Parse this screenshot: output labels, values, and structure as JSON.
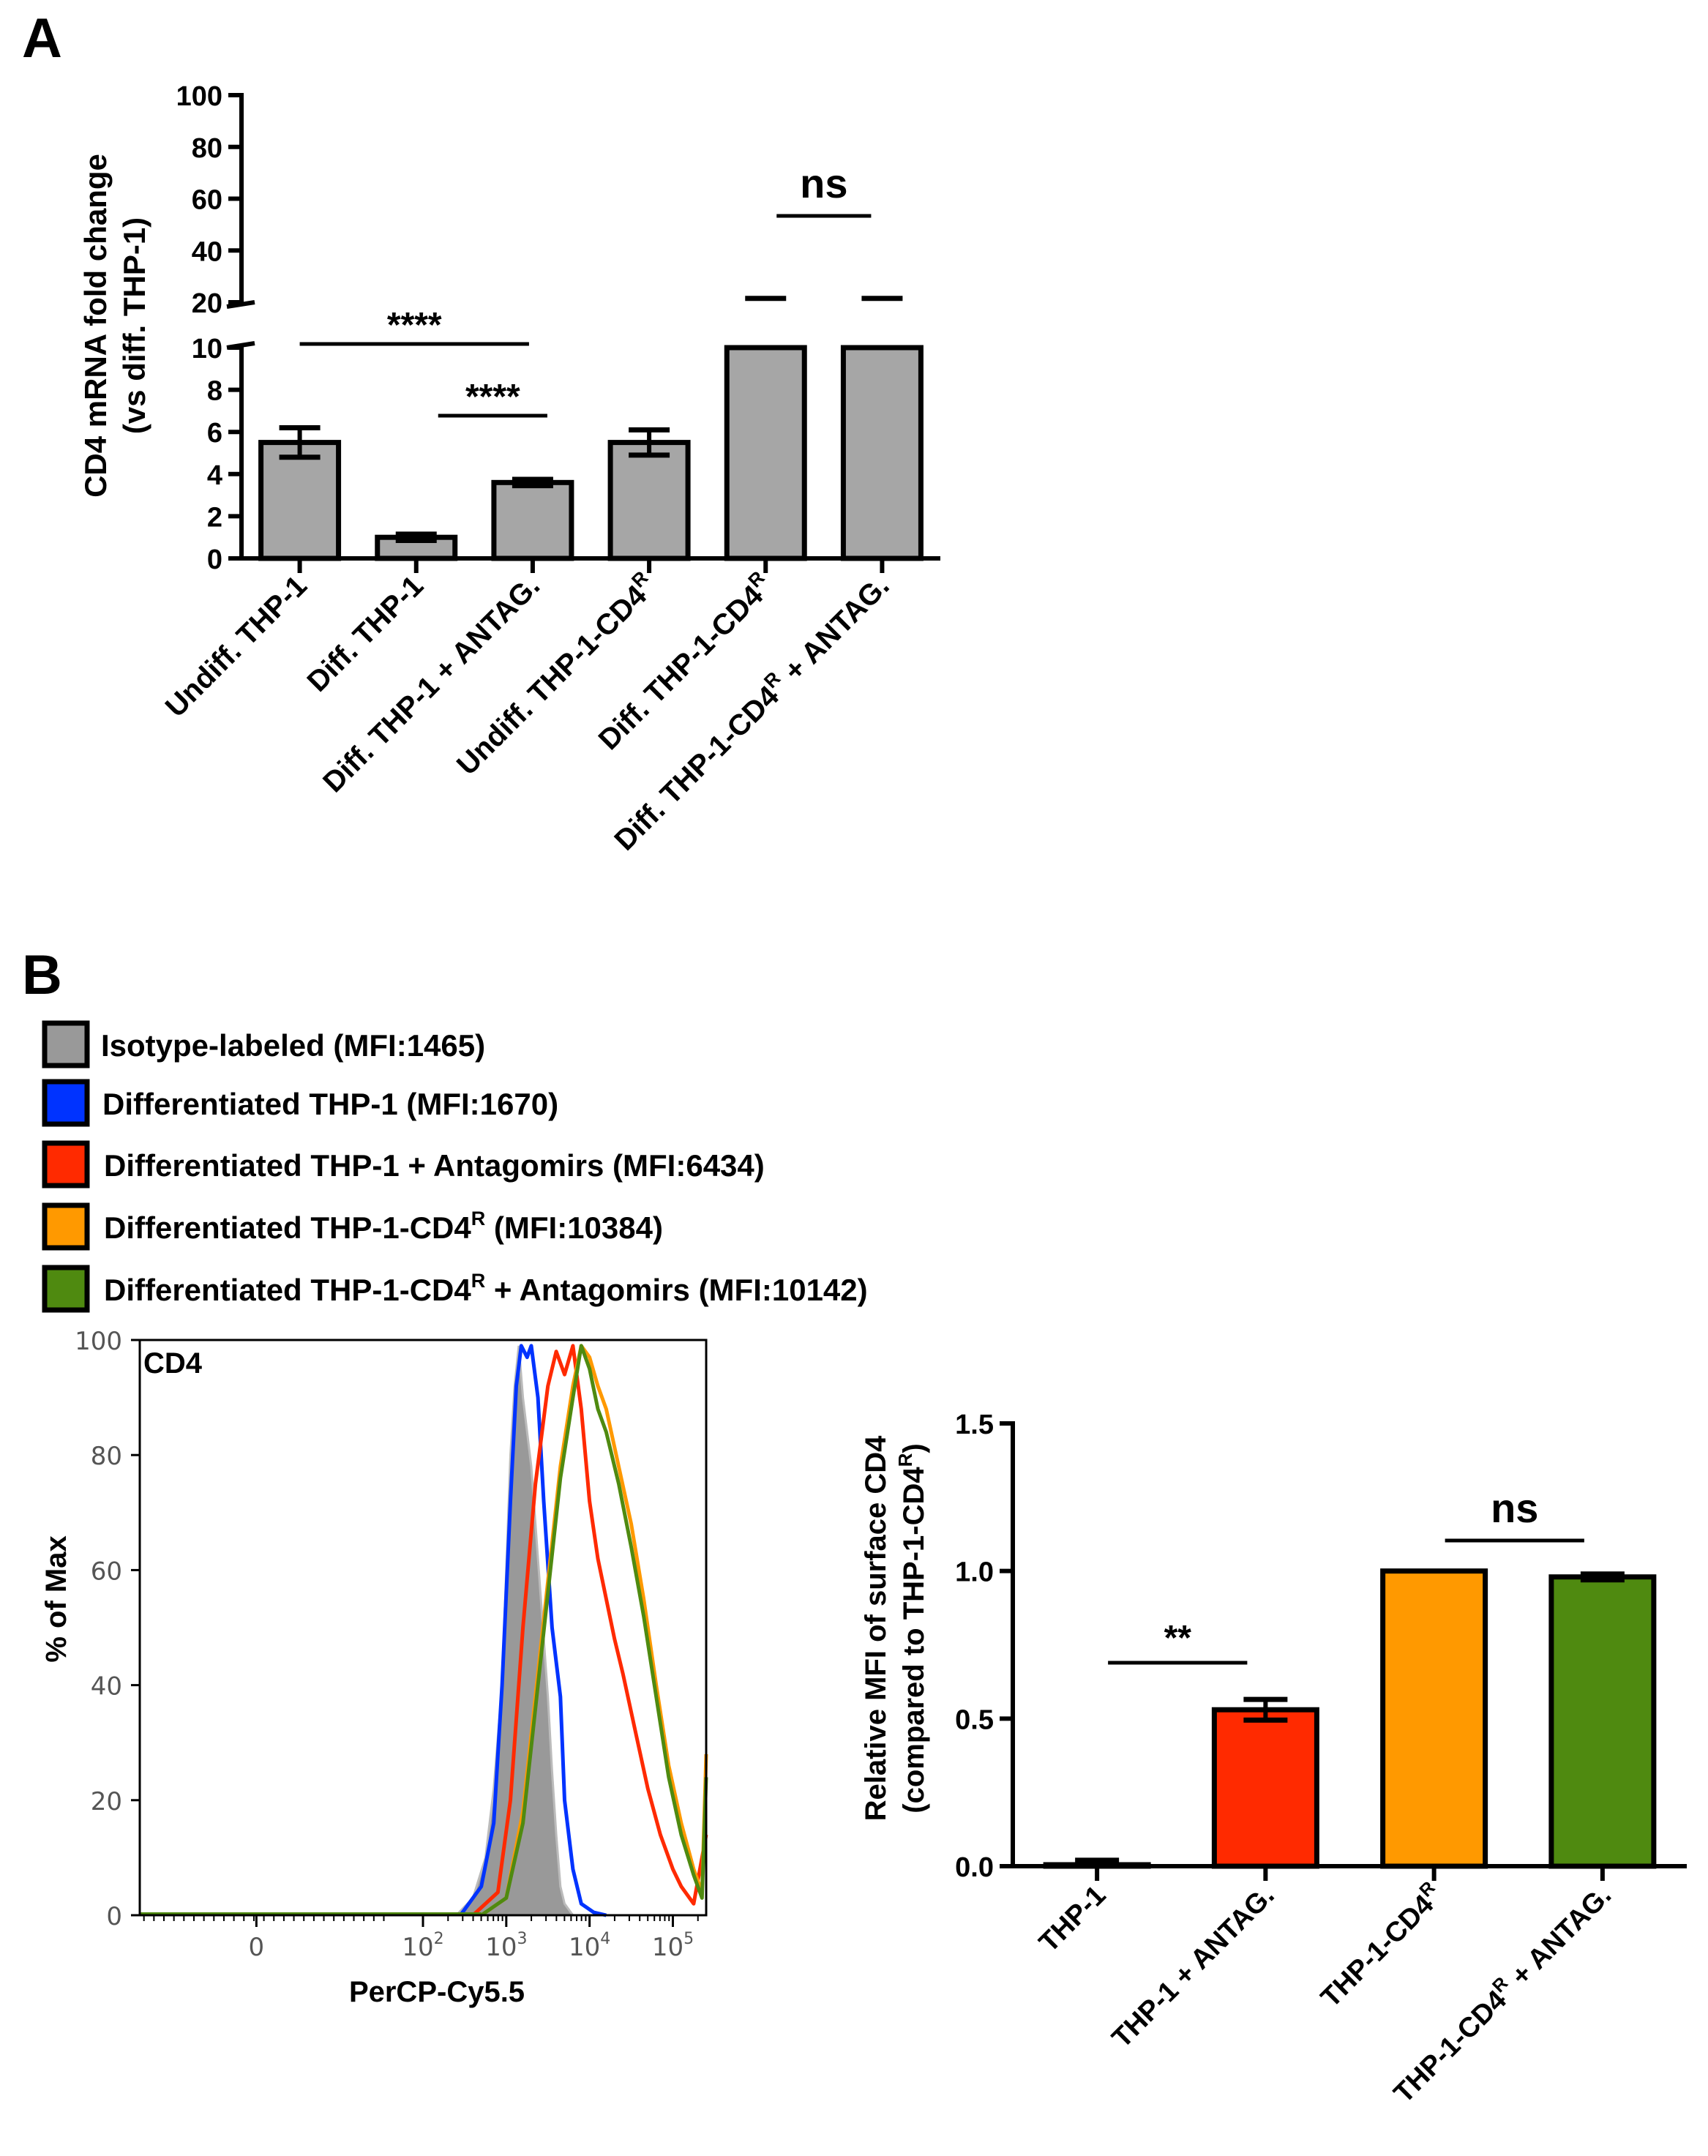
{
  "panel_labels": {
    "a": "A",
    "b": "B"
  },
  "legend": {
    "items": [
      {
        "label": "Isotype-labeled (MFI:1465)",
        "color": "#999999"
      },
      {
        "label": "Differentiated THP-1 (MFI:1670)",
        "color": "#0033ff"
      },
      {
        "label": "Differentiated THP-1 + Antagomirs (MFI:6434)",
        "color": "#ff2a00"
      },
      {
        "label_pre": "Differentiated THP-1-CD4",
        "label_sup": "R",
        "label_post": " (MFI:10384)",
        "color": "#ff9900"
      },
      {
        "label_pre": "Differentiated THP-1-CD4",
        "label_sup": "R",
        "label_post": " + Antagomirs (MFI:10142)",
        "color": "#4f8a10"
      }
    ]
  },
  "chart_data": [
    {
      "id": "panel-a",
      "type": "bar",
      "title": "",
      "ylabel_line1": "CD4 mRNA fold change",
      "ylabel_line2": "(vs diff. THP-1)",
      "y_lower_range": [
        0,
        10
      ],
      "y_upper_range": [
        20,
        100
      ],
      "y_ticks_lower": [
        "0",
        "2",
        "4",
        "6",
        "8",
        "10"
      ],
      "y_ticks_upper": [
        "20",
        "40",
        "60",
        "80",
        "100"
      ],
      "categories": [
        {
          "pre": "Undiff. THP-1",
          "sup": "",
          "post": ""
        },
        {
          "pre": "Diff. THP-1",
          "sup": "",
          "post": ""
        },
        {
          "pre": "Diff. THP-1 + ANTAG.",
          "sup": "",
          "post": ""
        },
        {
          "pre": "Undiff. THP-1-CD4",
          "sup": "R",
          "post": ""
        },
        {
          "pre": "Diff. THP-1-CD4",
          "sup": "R",
          "post": ""
        },
        {
          "pre": "Diff. THP-1-CD4",
          "sup": "R",
          "post": " + ANTAG."
        }
      ],
      "values": [
        5.5,
        1.0,
        3.6,
        5.5,
        20,
        20
      ],
      "errors": [
        0.7,
        0.15,
        0.15,
        0.6,
        1.5,
        1.5
      ],
      "bar_color": "#a6a6a6",
      "significance": [
        {
          "from": 0,
          "to": 2,
          "label": "****"
        },
        {
          "from": 1,
          "to": 2,
          "label": "****"
        },
        {
          "from": 4,
          "to": 5,
          "label": "ns"
        }
      ]
    },
    {
      "id": "panel-b-histogram",
      "type": "line",
      "title": "CD4",
      "xlabel": "PerCP-Cy5.5",
      "ylabel": "% of Max",
      "ylim": [
        0,
        100
      ],
      "y_ticks": [
        "0",
        "20",
        "40",
        "60",
        "80",
        "100"
      ],
      "x_ticks": [
        {
          "base": "0",
          "exp": ""
        },
        {
          "base": "10",
          "exp": "2"
        },
        {
          "base": "10",
          "exp": "3"
        },
        {
          "base": "10",
          "exp": "4"
        },
        {
          "base": "10",
          "exp": "5"
        }
      ],
      "x_scale": "biexponential, displayed as log10 decades",
      "x_tick_values": [
        0,
        2,
        3,
        4,
        5
      ],
      "xlim": [
        -1.4,
        5.4
      ],
      "series": [
        {
          "name": "Isotype-labeled",
          "color": "#999999",
          "filled": true,
          "x": [
            2.4,
            2.6,
            2.75,
            2.85,
            2.95,
            3.0,
            3.05,
            3.1,
            3.15,
            3.2,
            3.3,
            3.4,
            3.5,
            3.55,
            3.6,
            3.65,
            3.7,
            3.8
          ],
          "y": [
            0,
            3,
            10,
            22,
            40,
            60,
            80,
            92,
            99,
            90,
            78,
            58,
            38,
            25,
            14,
            5,
            2,
            0
          ]
        },
        {
          "name": "Differentiated THP-1",
          "color": "#0033ff",
          "filled": false,
          "x": [
            2.45,
            2.7,
            2.85,
            2.95,
            3.05,
            3.12,
            3.18,
            3.25,
            3.3,
            3.38,
            3.45,
            3.55,
            3.6,
            3.65,
            3.7,
            3.8,
            3.9,
            4.05,
            4.2
          ],
          "y": [
            0,
            5,
            16,
            40,
            72,
            92,
            99,
            97,
            99,
            90,
            72,
            50,
            44,
            38,
            20,
            8,
            2,
            0.5,
            0
          ]
        },
        {
          "name": "Differentiated THP-1 + Antagomirs",
          "color": "#ff2a00",
          "filled": false,
          "x": [
            2.6,
            2.9,
            3.05,
            3.2,
            3.35,
            3.5,
            3.6,
            3.7,
            3.8,
            3.9,
            4.0,
            4.1,
            4.2,
            4.3,
            4.4,
            4.55,
            4.7,
            4.85,
            5.0,
            5.1,
            5.25,
            5.4
          ],
          "y": [
            0,
            4,
            20,
            50,
            75,
            92,
            98,
            94,
            99,
            88,
            72,
            62,
            55,
            48,
            42,
            32,
            22,
            14,
            8,
            5,
            2,
            14
          ]
        },
        {
          "name": "Differentiated THP-1-CD4R",
          "color": "#ff9900",
          "filled": false,
          "x": [
            2.7,
            3.0,
            3.2,
            3.35,
            3.5,
            3.65,
            3.8,
            3.9,
            4.0,
            4.1,
            4.2,
            4.35,
            4.5,
            4.65,
            4.8,
            4.95,
            5.1,
            5.25,
            5.35,
            5.4
          ],
          "y": [
            0,
            3,
            18,
            38,
            58,
            78,
            92,
            99,
            97,
            92,
            88,
            78,
            68,
            55,
            40,
            26,
            16,
            8,
            4,
            28
          ]
        },
        {
          "name": "Differentiated THP-1-CD4R + Antagomirs",
          "color": "#4f8a10",
          "filled": false,
          "x": [
            2.7,
            3.0,
            3.2,
            3.35,
            3.5,
            3.65,
            3.8,
            3.9,
            4.0,
            4.1,
            4.2,
            4.35,
            4.5,
            4.65,
            4.8,
            4.95,
            5.1,
            5.25,
            5.35,
            5.4
          ],
          "y": [
            0,
            3,
            16,
            36,
            56,
            76,
            90,
            99,
            95,
            88,
            84,
            75,
            64,
            52,
            38,
            24,
            14,
            7,
            3,
            24
          ]
        }
      ]
    },
    {
      "id": "panel-b-bar",
      "type": "bar",
      "title": "",
      "ylabel_line1": "Relative MFI of surface CD4",
      "ylabel_pre": "(compared to THP-1-CD4",
      "ylabel_sup": "R",
      "ylabel_post": ")",
      "ylim": [
        0,
        1.5
      ],
      "y_ticks": [
        "0.0",
        "0.5",
        "1.0",
        "1.5"
      ],
      "categories": [
        {
          "pre": "THP-1",
          "sup": "",
          "post": ""
        },
        {
          "pre": "THP-1 + ANTAG.",
          "sup": "",
          "post": ""
        },
        {
          "pre": "THP-1-CD4",
          "sup": "R",
          "post": ""
        },
        {
          "pre": "THP-1-CD4",
          "sup": "R",
          "post": " + ANTAG."
        }
      ],
      "values": [
        0.005,
        0.53,
        1.0,
        0.98
      ],
      "errors": [
        0.015,
        0.035,
        0.0,
        0.01
      ],
      "colors": [
        "#0033ff",
        "#ff2a00",
        "#ff9900",
        "#4f8a10"
      ],
      "significance": [
        {
          "from": 0,
          "to": 1,
          "label": "**"
        },
        {
          "from": 2,
          "to": 3,
          "label": "ns"
        }
      ]
    }
  ]
}
